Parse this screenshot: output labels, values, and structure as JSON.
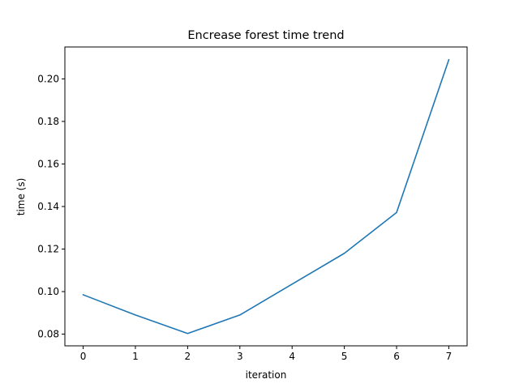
{
  "chart_data": {
    "type": "line",
    "title": "Encrease forest time trend",
    "xlabel": "iteration",
    "ylabel": "time (s)",
    "x": [
      0,
      1,
      2,
      3,
      4,
      5,
      6,
      7
    ],
    "series": [
      {
        "values": [
          0.0985,
          0.089,
          0.0803,
          0.089,
          0.1035,
          0.118,
          0.1372,
          0.209
        ],
        "color": "#1f77b4"
      }
    ],
    "xlim": [
      -0.35,
      7.35
    ],
    "ylim": [
      0.0745,
      0.215
    ],
    "xticks": [
      0,
      1,
      2,
      3,
      4,
      5,
      6,
      7
    ],
    "yticks": [
      0.08,
      0.1,
      0.12,
      0.14,
      0.16,
      0.18,
      0.2
    ],
    "ytick_labels": [
      "0.08",
      "0.10",
      "0.12",
      "0.14",
      "0.16",
      "0.18",
      "0.20"
    ],
    "grid": false,
    "legend": "none"
  }
}
